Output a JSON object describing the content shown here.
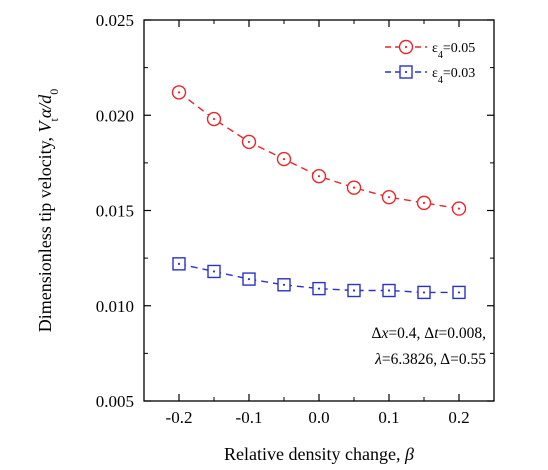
{
  "chart_data": {
    "type": "line",
    "xlabel_main": "Relative density change, ",
    "xlabel_symbol": "β",
    "ylabel": {
      "main": "Dimensionless tip velocity, ",
      "v": "V",
      "v_sub": "t",
      "mid": "α/",
      "d": "d",
      "d_sub": "0"
    },
    "xlim": [
      -0.25,
      0.25
    ],
    "ylim": [
      0.005,
      0.025
    ],
    "xticks": [
      -0.2,
      -0.1,
      0.0,
      0.1,
      0.2
    ],
    "xtick_labels": [
      "-0.2",
      "-0.1",
      "0.0",
      "0.1",
      "0.2"
    ],
    "yticks": [
      0.005,
      0.01,
      0.015,
      0.02,
      0.025
    ],
    "ytick_labels": [
      "0.005",
      "0.010",
      "0.015",
      "0.020",
      "0.025"
    ],
    "grid": false,
    "legend_position": "top-right",
    "x": [
      -0.2,
      -0.15,
      -0.1,
      -0.05,
      0.0,
      0.05,
      0.1,
      0.15,
      0.2
    ],
    "series": [
      {
        "legend_symbol": "ε",
        "legend_sub": "4",
        "legend_value": "=0.05",
        "marker": "circle-dot",
        "color": "#e8262a",
        "values": [
          0.0212,
          0.0198,
          0.0186,
          0.0177,
          0.0168,
          0.0162,
          0.0157,
          0.0154,
          0.0151
        ]
      },
      {
        "legend_symbol": "ε",
        "legend_sub": "4",
        "legend_value": "=0.03",
        "marker": "square-dot",
        "color": "#2a32c8",
        "values": [
          0.0122,
          0.0118,
          0.0114,
          0.0111,
          0.0109,
          0.0108,
          0.0108,
          0.0107,
          0.0107
        ]
      }
    ],
    "annotation": {
      "line1": [
        {
          "t": "Δ",
          "i": false
        },
        {
          "t": "x",
          "i": true
        },
        {
          "t": "=0.4, Δ",
          "i": false
        },
        {
          "t": "t",
          "i": true
        },
        {
          "t": "=0.008,",
          "i": false
        }
      ],
      "line2": [
        {
          "t": "λ",
          "i": true
        },
        {
          "t": "=6.3826, Δ=0.55",
          "i": false
        }
      ]
    }
  }
}
